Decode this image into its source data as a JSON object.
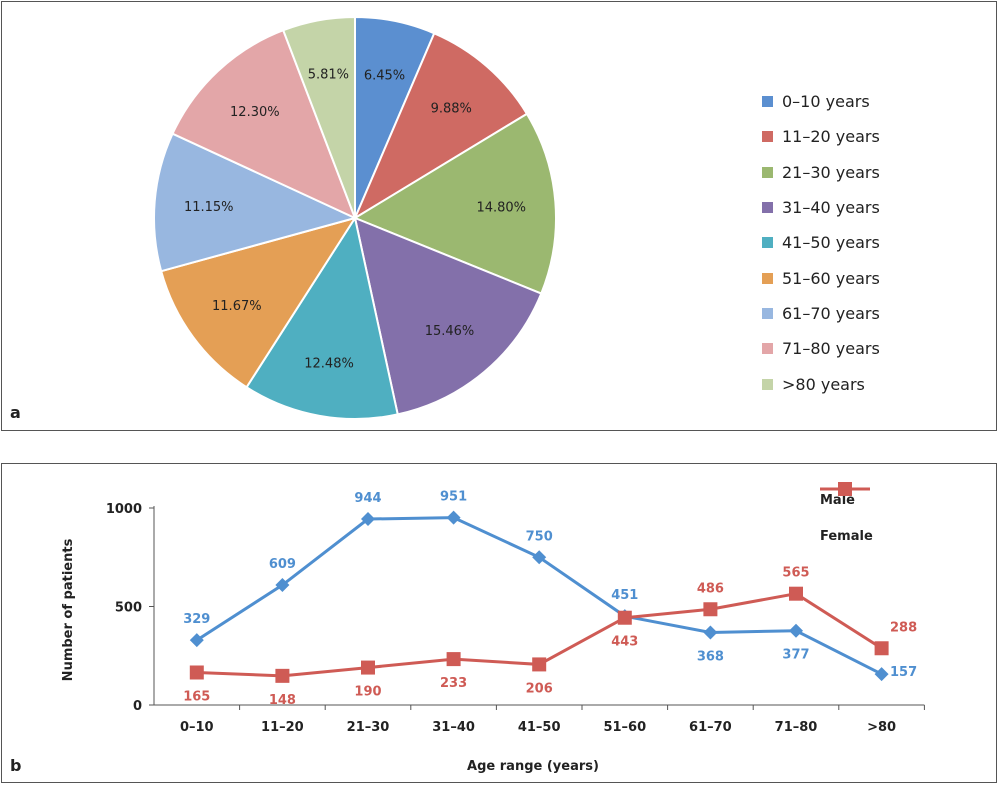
{
  "chart_data": [
    {
      "type": "pie",
      "panel_label": "a",
      "categories": [
        "0–10 years",
        "11–20 years",
        "21–30 years",
        "31–40 years",
        "41–50 years",
        "51–60 years",
        "61–70 years",
        "71–80 years",
        ">80 years"
      ],
      "values": [
        6.45,
        9.88,
        14.8,
        15.46,
        12.48,
        11.67,
        11.15,
        12.3,
        5.81
      ],
      "labels": [
        "6.45%",
        "9.88%",
        "14.80%",
        "15.46%",
        "12.48%",
        "11.67%",
        "11.15%",
        "12.30%",
        "5.81%"
      ],
      "colors": [
        "#5b8fd0",
        "#cf6a63",
        "#9bb870",
        "#8370aa",
        "#4fafc1",
        "#e49f55",
        "#98b7e0",
        "#e3a6a8",
        "#c4d4a8"
      ],
      "legend_position": "right"
    },
    {
      "type": "line",
      "panel_label": "b",
      "categories": [
        "0–10",
        "11–20",
        "21–30",
        "31–40",
        "41–50",
        "51–60",
        "61–70",
        "71–80",
        ">80"
      ],
      "series": [
        {
          "name": "Male",
          "values": [
            329,
            609,
            944,
            951,
            750,
            451,
            368,
            377,
            157
          ],
          "color": "#4f8fd0",
          "marker": "diamond",
          "labels": [
            "329",
            "609",
            "944",
            "951",
            "750",
            "451",
            "368",
            "377",
            "157"
          ]
        },
        {
          "name": "Female",
          "values": [
            165,
            148,
            190,
            233,
            206,
            443,
            486,
            565,
            288
          ],
          "color": "#cf5b55",
          "marker": "square",
          "labels": [
            "165",
            "148",
            "190",
            "233",
            "206",
            "443",
            "486",
            "565",
            "288"
          ]
        }
      ],
      "xlabel": "Age range (years)",
      "ylabel": "Number of patients",
      "ylim": [
        0,
        1000
      ],
      "yticks": [
        "0",
        "500",
        "1000"
      ],
      "legend_position": "top-right",
      "grid": false
    }
  ]
}
